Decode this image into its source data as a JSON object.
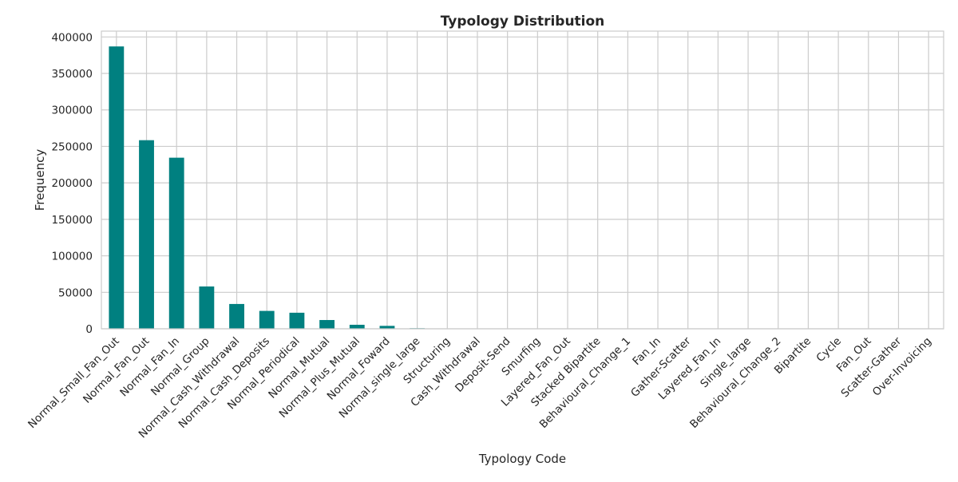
{
  "chart_data": {
    "type": "bar",
    "title": "Typology Distribution",
    "xlabel": "Typology Code",
    "ylabel": "Frequency",
    "ylim": [
      0,
      408000
    ],
    "yticks": [
      0,
      50000,
      100000,
      150000,
      200000,
      250000,
      300000,
      350000,
      400000
    ],
    "grid": true,
    "bar_color": "#008080",
    "grid_color": "#cccccc",
    "categories": [
      "Normal_Small_Fan_Out",
      "Normal_Fan_Out",
      "Normal_Fan_In",
      "Normal_Group",
      "Normal_Cash_Withdrawal",
      "Normal_Cash_Deposits",
      "Normal_Periodical",
      "Normal_Mutual",
      "Normal_Plus_Mutual",
      "Normal_Foward",
      "Normal_single_large",
      "Structuring",
      "Cash_Withdrawal",
      "Deposit-Send",
      "Smurfing",
      "Layered_Fan_Out",
      "Stacked Bipartite",
      "Behavioural_Change_1",
      "Fan_In",
      "Gather-Scatter",
      "Layered_Fan_In",
      "Single_large",
      "Behavioural_Change_2",
      "Bipartite",
      "Cycle",
      "Fan_Out",
      "Scatter-Gather",
      "Over-Invoicing"
    ],
    "values": [
      387000,
      258500,
      234500,
      58000,
      34000,
      24500,
      22000,
      12000,
      5500,
      4000,
      800,
      400,
      300,
      250,
      200,
      150,
      150,
      120,
      100,
      100,
      90,
      80,
      70,
      60,
      50,
      40,
      30,
      20
    ]
  }
}
